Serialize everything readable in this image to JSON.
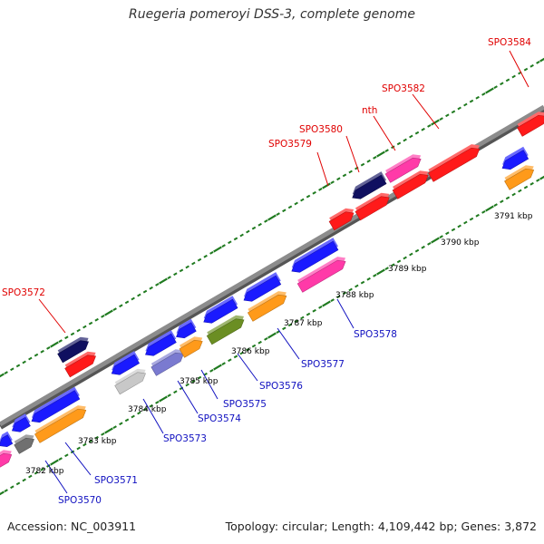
{
  "title": "Ruegeria pomeroyi DSS-3, complete genome",
  "footer": {
    "accession": "Accession: NC_003911",
    "summary": "Topology: circular; Length: 4,109,442 bp; Genes: 3,872"
  },
  "colors": {
    "backbone": "#8c8c8c",
    "tick_dots": "#1f7a1f",
    "label_top": "#e00000",
    "label_bottom": "#1010c0",
    "kbp_text": "#000000"
  },
  "kbp_labels": [
    "3782 kbp",
    "3783 kbp",
    "3784 kbp",
    "3785 kbp",
    "3786 kbp",
    "3787 kbp",
    "3788 kbp",
    "3789 kbp",
    "3790 kbp",
    "3791 kbp"
  ],
  "gene_labels_top": [
    "SPO3572",
    "SPO3579",
    "SPO3580",
    "nth",
    "SPO3582",
    "SPO3584"
  ],
  "gene_labels_bottom": [
    "SPO3570",
    "SPO3571",
    "SPO3573",
    "SPO3574",
    "SPO3575",
    "SPO3576",
    "SPO3577",
    "SPO3578"
  ],
  "gene_colors": {
    "red": "#ff1a1a",
    "blue": "#1a1aff",
    "navy": "#101060",
    "orange": "#ff9a1a",
    "pink": "#ff3aa8",
    "olive": "#6b8e23",
    "gray": "#707070",
    "lightgray": "#c8c8c8",
    "purple": "#7a7ad0"
  }
}
